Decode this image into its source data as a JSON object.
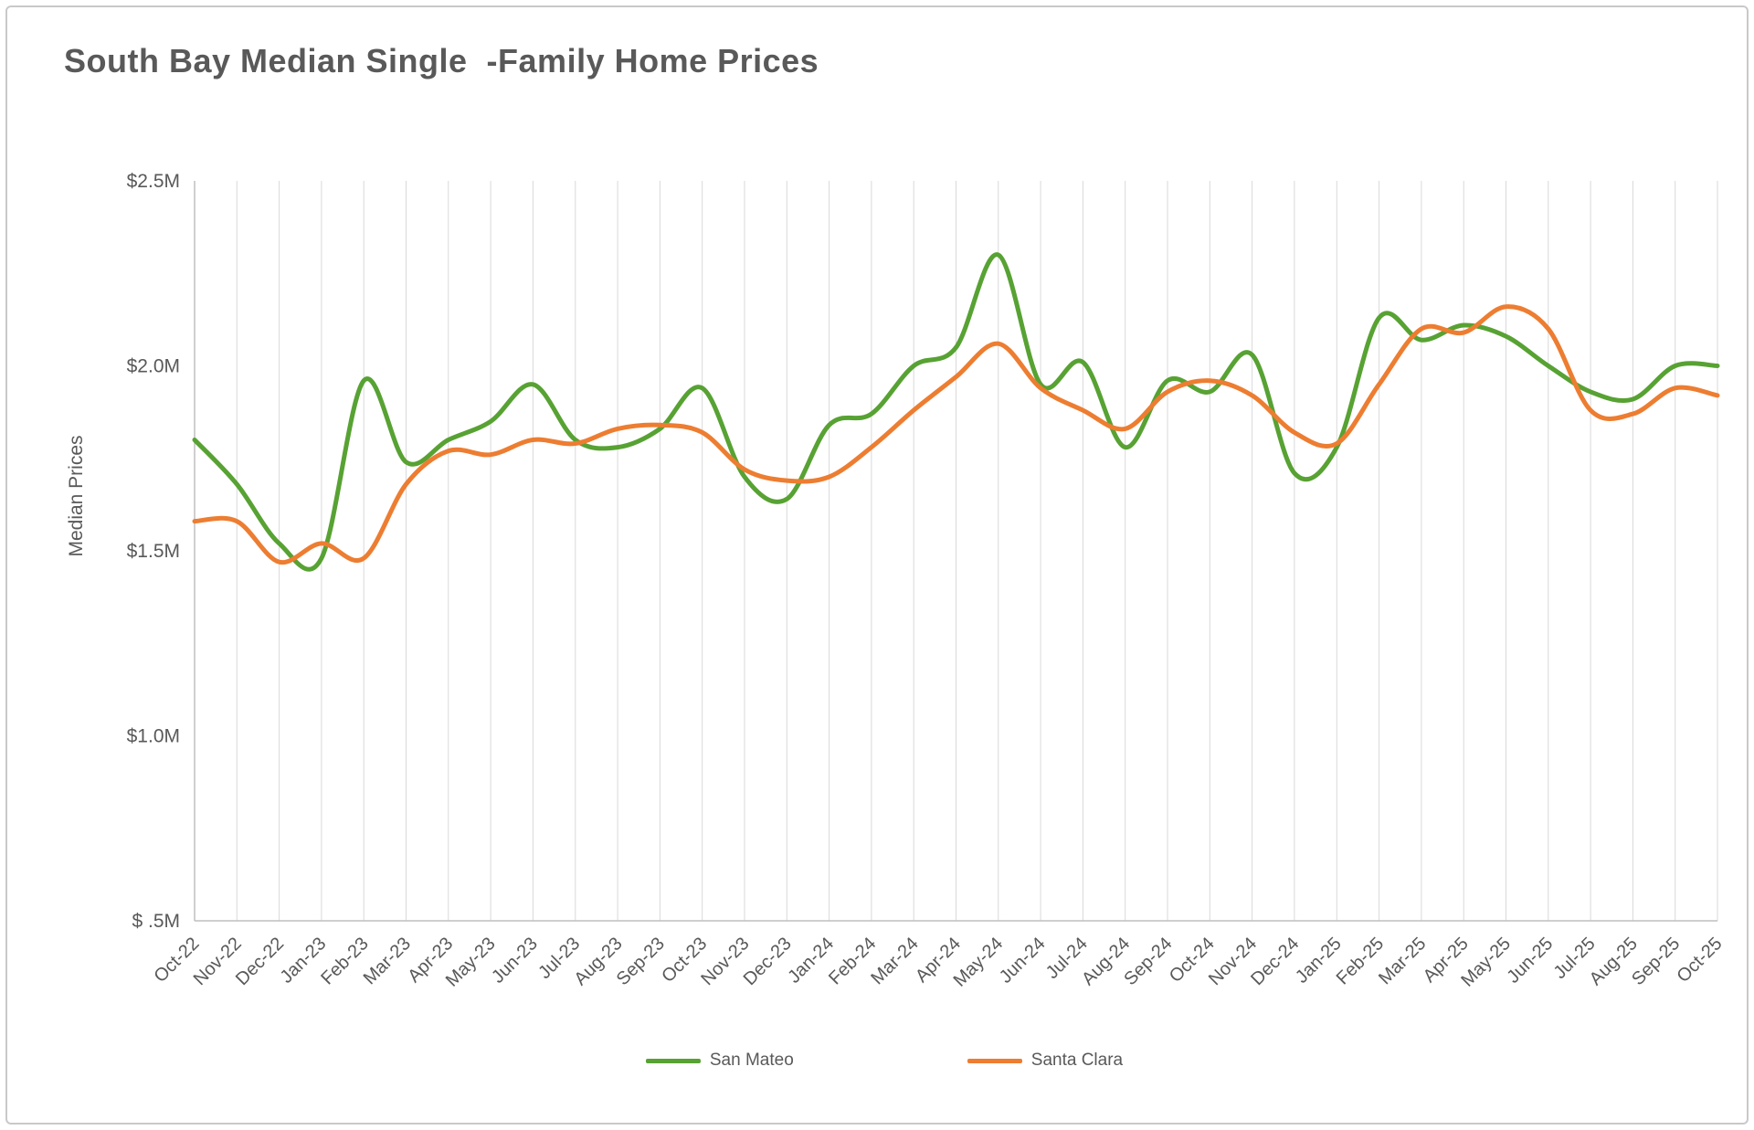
{
  "page": {
    "title": "South Bay Median Single  -Family Home Prices"
  },
  "chart_data": {
    "type": "line",
    "title": "South Bay Median Single  -Family Home Prices",
    "xlabel": "",
    "ylabel": "Median Prices",
    "ylim": [
      0.5,
      2.5
    ],
    "grid": "vertical",
    "legend_position": "bottom",
    "line_style": "smooth",
    "yticks": [
      {
        "value": 2.5,
        "label": "$2.5M"
      },
      {
        "value": 2.0,
        "label": "$2.0M"
      },
      {
        "value": 1.5,
        "label": "$1.5M"
      },
      {
        "value": 1.0,
        "label": "$1.0M"
      },
      {
        "value": 0.5,
        "label": "$ .5M"
      }
    ],
    "categories": [
      "Oct-22",
      "Nov-22",
      "Dec-22",
      "Jan-23",
      "Feb-23",
      "Mar-23",
      "Apr-23",
      "May-23",
      "Jun-23",
      "Jul-23",
      "Aug-23",
      "Sep-23",
      "Oct-23",
      "Nov-23",
      "Dec-23",
      "Jan-24",
      "Feb-24",
      "Mar-24",
      "Apr-24",
      "May-24",
      "Jun-24",
      "Jul-24",
      "Aug-24",
      "Sep-24",
      "Oct-24",
      "Nov-24",
      "Dec-24",
      "Jan-25",
      "Feb-25",
      "Mar-25",
      "Apr-25",
      "May-25",
      "Jun-25",
      "Jul-25",
      "Aug-25",
      "Sep-25",
      "Oct-25"
    ],
    "series": [
      {
        "name": "San Mateo",
        "color": "#57a233",
        "values": [
          1.8,
          1.68,
          1.52,
          1.48,
          1.96,
          1.74,
          1.8,
          1.85,
          1.95,
          1.8,
          1.78,
          1.83,
          1.94,
          1.7,
          1.64,
          1.84,
          1.87,
          2.0,
          2.05,
          2.3,
          1.95,
          2.01,
          1.78,
          1.96,
          1.93,
          2.03,
          1.71,
          1.78,
          2.13,
          2.07,
          2.11,
          2.08,
          2.0,
          1.93,
          1.91,
          2.0,
          2.0
        ]
      },
      {
        "name": "Santa Clara",
        "color": "#ed7d31",
        "values": [
          1.58,
          1.58,
          1.47,
          1.52,
          1.48,
          1.68,
          1.77,
          1.76,
          1.8,
          1.79,
          1.83,
          1.84,
          1.82,
          1.72,
          1.69,
          1.7,
          1.78,
          1.88,
          1.97,
          2.06,
          1.94,
          1.88,
          1.83,
          1.93,
          1.96,
          1.92,
          1.82,
          1.79,
          1.95,
          2.1,
          2.09,
          2.16,
          2.1,
          1.88,
          1.87,
          1.94,
          1.92
        ]
      }
    ],
    "colors": {
      "title_text": "#595959",
      "axis_text": "#595959",
      "gridline": "#d9d9d9",
      "axis_line": "#bfbfbf"
    }
  }
}
